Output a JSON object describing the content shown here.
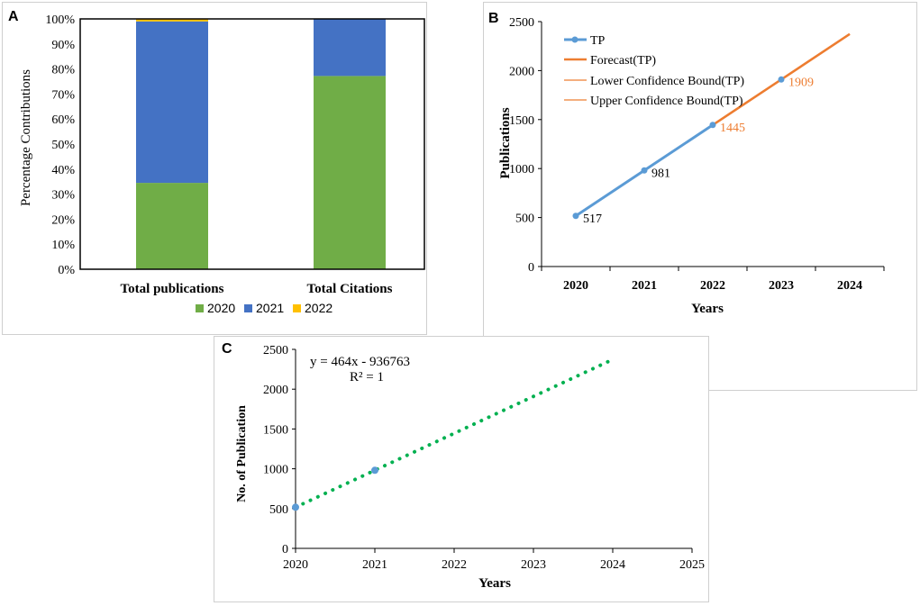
{
  "colors": {
    "green": "#70AD47",
    "blue": "#4472C4",
    "yellow": "#FFC000",
    "tp_line": "#5B9BD5",
    "forecast": "#ED7D31",
    "trend": "#00B050",
    "axis": "#000000",
    "grid": "#D9D9D9"
  },
  "chart_data": [
    {
      "panel_label": "A",
      "type": "bar",
      "stacked": true,
      "categories": [
        "Total publications",
        "Total Citations"
      ],
      "series": [
        {
          "name": "2020",
          "values": [
            34.5,
            77.2
          ]
        },
        {
          "name": "2021",
          "values": [
            64.5,
            22.8
          ]
        },
        {
          "name": "2022",
          "values": [
            1.0,
            0.0
          ]
        }
      ],
      "ylabel": "Percentage Contributions",
      "ylim": [
        0,
        100
      ],
      "yticks": [
        "0%",
        "10%",
        "20%",
        "30%",
        "40%",
        "50%",
        "60%",
        "70%",
        "80%",
        "90%",
        "100%"
      ],
      "legend_position": "bottom"
    },
    {
      "panel_label": "B",
      "type": "line",
      "x": [
        "2020",
        "2021",
        "2022",
        "2023",
        "2024"
      ],
      "series": [
        {
          "name": "TP",
          "x": [
            "2020",
            "2021",
            "2022"
          ],
          "values": [
            517,
            981,
            1445
          ]
        },
        {
          "name": "Forecast(TP)",
          "x": [
            "2022",
            "2023",
            "2024"
          ],
          "values": [
            1445,
            1909,
            2373
          ]
        },
        {
          "name": "Lower Confidence Bound(TP)",
          "x": [
            "2022",
            "2023",
            "2024"
          ],
          "values": [
            1445,
            1909,
            2373
          ]
        },
        {
          "name": "Upper Confidence Bound(TP)",
          "x": [
            "2022",
            "2023",
            "2024"
          ],
          "values": [
            1445,
            1909,
            2373
          ]
        }
      ],
      "point_labels": [
        {
          "x": "2020",
          "value": 517,
          "text": "517"
        },
        {
          "x": "2021",
          "value": 981,
          "text": "981"
        },
        {
          "x": "2022",
          "value": 1445,
          "text": "1445"
        },
        {
          "x": "2023",
          "value": 1909,
          "text": "1909"
        }
      ],
      "xlabel": "Years",
      "ylabel": "Publications",
      "ylim": [
        0,
        2500
      ],
      "yticks": [
        "0",
        "500",
        "1000",
        "1500",
        "2000",
        "2500"
      ],
      "legend_position": "top-left"
    },
    {
      "panel_label": "C",
      "type": "scatter",
      "series": [
        {
          "name": "Publications",
          "x": [
            2020,
            2021
          ],
          "values": [
            517,
            981
          ]
        }
      ],
      "trendline": {
        "x_start": 2020,
        "x_end": 2024,
        "slope": 464,
        "intercept": -936763
      },
      "annotations": [
        "y = 464x - 936763",
        "R² = 1"
      ],
      "xlabel": "Years",
      "ylabel": "No. of Publication",
      "xlim": [
        2020,
        2025
      ],
      "ylim": [
        0,
        2500
      ],
      "xticks": [
        "2020",
        "2021",
        "2022",
        "2023",
        "2024",
        "2025"
      ],
      "yticks": [
        "0",
        "500",
        "1000",
        "1500",
        "2000",
        "2500"
      ]
    }
  ]
}
